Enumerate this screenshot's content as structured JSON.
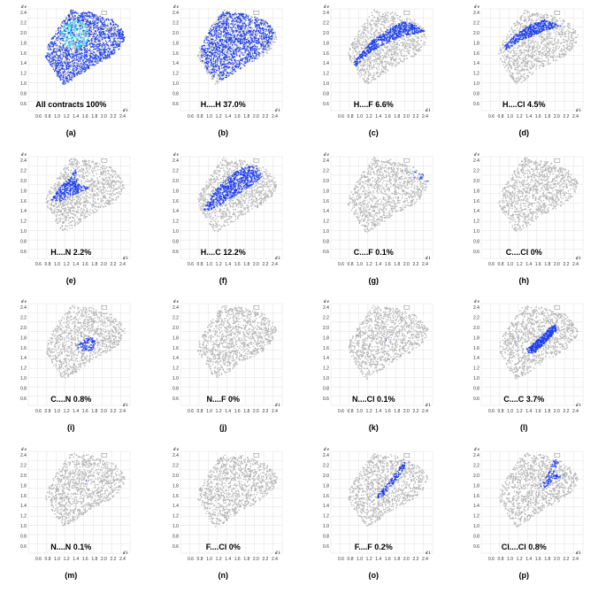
{
  "chart_data": [
    {
      "type": "scatter",
      "title": "All contracts 100%",
      "panel_label": "(a)",
      "xlabel": "d i",
      "ylabel": "d e",
      "highlight": "all",
      "x_ticks": [
        "0.6",
        "0.8",
        "1.0",
        "1.2",
        "1.4",
        "1.6",
        "1.8",
        "2.0",
        "2.2",
        "2.4"
      ],
      "y_ticks": [
        "2.4",
        "2.2",
        "2.0",
        "1.8",
        "1.6",
        "1.4",
        "1.2",
        "1.0",
        "0.8",
        "0.6"
      ],
      "xlim": [
        0.4,
        2.6
      ],
      "ylim": [
        0.4,
        2.6
      ]
    },
    {
      "type": "scatter",
      "title": "H....H 37.0%",
      "panel_label": "(b)",
      "xlabel": "d i",
      "ylabel": "d e",
      "highlight": "HH",
      "x_ticks": [
        "0.6",
        "0.8",
        "1.0",
        "1.2",
        "1.4",
        "1.6",
        "1.8",
        "2.0",
        "2.2",
        "2.4"
      ],
      "y_ticks": [
        "2.4",
        "2.2",
        "2.0",
        "1.8",
        "1.6",
        "1.4",
        "1.2",
        "1.0",
        "0.8",
        "0.6"
      ],
      "xlim": [
        0.4,
        2.6
      ],
      "ylim": [
        0.4,
        2.6
      ]
    },
    {
      "type": "scatter",
      "title": "H....F 6.6%",
      "panel_label": "(c)",
      "xlabel": "d i",
      "ylabel": "d e",
      "highlight": "HF",
      "x_ticks": [
        "0.6",
        "0.8",
        "1.0",
        "1.2",
        "1.4",
        "1.6",
        "1.8",
        "2.0",
        "2.2",
        "2.4"
      ],
      "y_ticks": [
        "2.4",
        "2.2",
        "2.0",
        "1.8",
        "1.6",
        "1.4",
        "1.2",
        "1.0",
        "0.8",
        "0.6"
      ],
      "xlim": [
        0.4,
        2.6
      ],
      "ylim": [
        0.4,
        2.6
      ]
    },
    {
      "type": "scatter",
      "title": "H....Cl 4.5%",
      "panel_label": "(d)",
      "xlabel": "d i",
      "ylabel": "d e",
      "highlight": "HCl",
      "x_ticks": [
        "0.6",
        "0.8",
        "1.0",
        "1.2",
        "1.4",
        "1.6",
        "1.8",
        "2.0",
        "2.2",
        "2.4"
      ],
      "y_ticks": [
        "2.4",
        "2.2",
        "2.0",
        "1.8",
        "1.6",
        "1.4",
        "1.2",
        "1.0",
        "0.8",
        "0.6"
      ],
      "xlim": [
        0.4,
        2.6
      ],
      "ylim": [
        0.4,
        2.6
      ]
    },
    {
      "type": "scatter",
      "title": "H....N 2.2%",
      "panel_label": "(e)",
      "xlabel": "d i",
      "ylabel": "d e",
      "highlight": "HN",
      "x_ticks": [
        "0.6",
        "0.8",
        "1.0",
        "1.2",
        "1.4",
        "1.6",
        "1.8",
        "2.0",
        "2.2",
        "2.4"
      ],
      "y_ticks": [
        "2.4",
        "2.2",
        "2.0",
        "1.8",
        "1.6",
        "1.4",
        "1.2",
        "1.0",
        "0.8",
        "0.6"
      ],
      "xlim": [
        0.4,
        2.6
      ],
      "ylim": [
        0.4,
        2.6
      ]
    },
    {
      "type": "scatter",
      "title": "H....C 12.2%",
      "panel_label": "(f)",
      "xlabel": "d i",
      "ylabel": "d e",
      "highlight": "HC",
      "x_ticks": [
        "0.6",
        "0.8",
        "1.0",
        "1.2",
        "1.4",
        "1.6",
        "1.8",
        "2.0",
        "2.2",
        "2.4"
      ],
      "y_ticks": [
        "2.4",
        "2.2",
        "2.0",
        "1.8",
        "1.6",
        "1.4",
        "1.2",
        "1.0",
        "0.8",
        "0.6"
      ],
      "xlim": [
        0.4,
        2.6
      ],
      "ylim": [
        0.4,
        2.6
      ]
    },
    {
      "type": "scatter",
      "title": "C....F 0.1%",
      "panel_label": "(g)",
      "xlabel": "d i",
      "ylabel": "d e",
      "highlight": "CF",
      "x_ticks": [
        "0.6",
        "0.8",
        "1.0",
        "1.2",
        "1.4",
        "1.6",
        "1.8",
        "2.0",
        "2.2",
        "2.4"
      ],
      "y_ticks": [
        "2.4",
        "2.2",
        "2.0",
        "1.8",
        "1.6",
        "1.4",
        "1.2",
        "1.0",
        "0.8",
        "0.6"
      ],
      "xlim": [
        0.4,
        2.6
      ],
      "ylim": [
        0.4,
        2.6
      ]
    },
    {
      "type": "scatter",
      "title": "C....Cl 0%",
      "panel_label": "(h)",
      "xlabel": "d i",
      "ylabel": "d e",
      "highlight": "CCl",
      "x_ticks": [
        "0.6",
        "0.8",
        "1.0",
        "1.2",
        "1.4",
        "1.6",
        "1.8",
        "2.0",
        "2.2",
        "2.4"
      ],
      "y_ticks": [
        "2.4",
        "2.2",
        "2.0",
        "1.8",
        "1.6",
        "1.4",
        "1.2",
        "1.0",
        "0.8",
        "0.6"
      ],
      "xlim": [
        0.4,
        2.6
      ],
      "ylim": [
        0.4,
        2.6
      ]
    },
    {
      "type": "scatter",
      "title": "C....N 0.8%",
      "panel_label": "(i)",
      "xlabel": "d i",
      "ylabel": "d e",
      "highlight": "CN",
      "x_ticks": [
        "0.6",
        "0.8",
        "1.0",
        "1.2",
        "1.4",
        "1.6",
        "1.8",
        "2.0",
        "2.2",
        "2.4"
      ],
      "y_ticks": [
        "2.4",
        "2.2",
        "2.0",
        "1.8",
        "1.6",
        "1.4",
        "1.2",
        "1.0",
        "0.8",
        "0.6"
      ],
      "xlim": [
        0.4,
        2.6
      ],
      "ylim": [
        0.4,
        2.6
      ]
    },
    {
      "type": "scatter",
      "title": "N....F 0%",
      "panel_label": "(j)",
      "xlabel": "d i",
      "ylabel": "d e",
      "highlight": "NF",
      "x_ticks": [
        "0.6",
        "0.8",
        "1.0",
        "1.2",
        "1.4",
        "1.6",
        "1.8",
        "2.0",
        "2.2",
        "2.4"
      ],
      "y_ticks": [
        "2.4",
        "2.2",
        "2.0",
        "1.8",
        "1.6",
        "1.4",
        "1.2",
        "1.0",
        "0.8",
        "0.6"
      ],
      "xlim": [
        0.4,
        2.6
      ],
      "ylim": [
        0.4,
        2.6
      ]
    },
    {
      "type": "scatter",
      "title": "N....Cl 0.1%",
      "panel_label": "(k)",
      "xlabel": "d i",
      "ylabel": "d e",
      "highlight": "NCl",
      "x_ticks": [
        "0.6",
        "0.8",
        "1.0",
        "1.2",
        "1.4",
        "1.6",
        "1.8",
        "2.0",
        "2.2",
        "2.4"
      ],
      "y_ticks": [
        "2.4",
        "2.2",
        "2.0",
        "1.8",
        "1.6",
        "1.4",
        "1.2",
        "1.0",
        "0.8",
        "0.6"
      ],
      "xlim": [
        0.4,
        2.6
      ],
      "ylim": [
        0.4,
        2.6
      ]
    },
    {
      "type": "scatter",
      "title": "C....C 3.7%",
      "panel_label": "(l)",
      "xlabel": "d i",
      "ylabel": "d e",
      "highlight": "CC",
      "x_ticks": [
        "0.6",
        "0.8",
        "1.0",
        "1.2",
        "1.4",
        "1.6",
        "1.8",
        "2.0",
        "2.2",
        "2.4"
      ],
      "y_ticks": [
        "2.4",
        "2.2",
        "2.0",
        "1.8",
        "1.6",
        "1.4",
        "1.2",
        "1.0",
        "0.8",
        "0.6"
      ],
      "xlim": [
        0.4,
        2.6
      ],
      "ylim": [
        0.4,
        2.6
      ]
    },
    {
      "type": "scatter",
      "title": "N....N 0.1%",
      "panel_label": "(m)",
      "xlabel": "d i",
      "ylabel": "d e",
      "highlight": "NN",
      "x_ticks": [
        "0.6",
        "0.8",
        "1.0",
        "1.2",
        "1.4",
        "1.6",
        "1.8",
        "2.0",
        "2.2",
        "2.4"
      ],
      "y_ticks": [
        "2.4",
        "2.2",
        "2.0",
        "1.8",
        "1.6",
        "1.4",
        "1.2",
        "1.0",
        "0.8",
        "0.6"
      ],
      "xlim": [
        0.4,
        2.6
      ],
      "ylim": [
        0.4,
        2.6
      ]
    },
    {
      "type": "scatter",
      "title": "F....Cl 0%",
      "panel_label": "(n)",
      "xlabel": "d i",
      "ylabel": "d e",
      "highlight": "FCl",
      "x_ticks": [
        "0.6",
        "0.8",
        "1.0",
        "1.2",
        "1.4",
        "1.6",
        "1.8",
        "2.0",
        "2.2",
        "2.4"
      ],
      "y_ticks": [
        "2.4",
        "2.2",
        "2.0",
        "1.8",
        "1.6",
        "1.4",
        "1.2",
        "1.0",
        "0.8",
        "0.6"
      ],
      "xlim": [
        0.4,
        2.6
      ],
      "ylim": [
        0.4,
        2.6
      ]
    },
    {
      "type": "scatter",
      "title": "F....F 0.2%",
      "panel_label": "(o)",
      "xlabel": "d i",
      "ylabel": "d e",
      "highlight": "FF",
      "x_ticks": [
        "0.6",
        "0.8",
        "1.0",
        "1.2",
        "1.4",
        "1.6",
        "1.8",
        "2.0",
        "2.2",
        "2.4"
      ],
      "y_ticks": [
        "2.4",
        "2.2",
        "2.0",
        "1.8",
        "1.6",
        "1.4",
        "1.2",
        "1.0",
        "0.8",
        "0.6"
      ],
      "xlim": [
        0.4,
        2.6
      ],
      "ylim": [
        0.4,
        2.6
      ]
    },
    {
      "type": "scatter",
      "title": "Cl....Cl 0.8%",
      "panel_label": "(p)",
      "xlabel": "d i",
      "ylabel": "d e",
      "highlight": "ClCl",
      "x_ticks": [
        "0.6",
        "0.8",
        "1.0",
        "1.2",
        "1.4",
        "1.6",
        "1.8",
        "2.0",
        "2.2",
        "2.4"
      ],
      "y_ticks": [
        "2.4",
        "2.2",
        "2.0",
        "1.8",
        "1.6",
        "1.4",
        "1.2",
        "1.0",
        "0.8",
        "0.6"
      ],
      "xlim": [
        0.4,
        2.6
      ],
      "ylim": [
        0.4,
        2.6
      ]
    }
  ],
  "colors": {
    "background_points": "#b4b4b4",
    "highlight_points": "#1f3ff0",
    "highlight_dense": "#28d4f0",
    "grid": "#d8d8d8"
  }
}
